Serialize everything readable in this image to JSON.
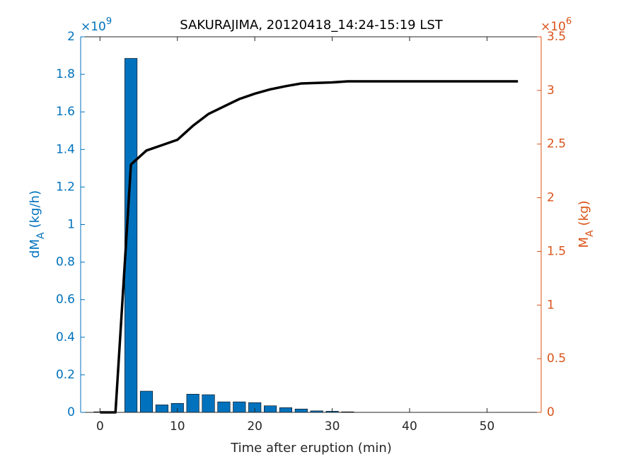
{
  "chart_data": {
    "type": "combo",
    "title": "SAKURAJIMA, 20120418_14:24-15:19 LST",
    "xlabel": "Time after eruption (min)",
    "ylabel": {
      "main": "dM",
      "sub": "A",
      "unit": "(kg/h)"
    },
    "y2label": {
      "main": "M",
      "sub": "A",
      "unit": "(kg)"
    },
    "y_exponent": {
      "base": "×10",
      "exp": "9"
    },
    "y2_exponent": {
      "base": "×10",
      "exp": "6"
    },
    "x": [
      0,
      2,
      4,
      6,
      8,
      10,
      12,
      14,
      16,
      18,
      20,
      22,
      24,
      26,
      28,
      30,
      32,
      34,
      36,
      38,
      40,
      42,
      44,
      46,
      48,
      50,
      52,
      54
    ],
    "xlim": [
      -2.5,
      57
    ],
    "xticks": [
      0,
      10,
      20,
      30,
      40,
      50
    ],
    "ylim": [
      0,
      2
    ],
    "yticks": [
      0,
      0.2,
      0.4,
      0.6,
      0.8,
      1,
      1.2,
      1.4,
      1.6,
      1.8,
      2
    ],
    "y2lim": [
      0,
      3.5
    ],
    "y2ticks": [
      0,
      0.5,
      1,
      1.5,
      2,
      2.5,
      3,
      3.5
    ],
    "y_color": "#0072bd",
    "y2_color": "#d95319",
    "series": [
      {
        "type": "bar",
        "color": "#0072bd",
        "values": [
          0.003,
          0,
          1.885,
          0.113,
          0.04,
          0.048,
          0.097,
          0.094,
          0.056,
          0.056,
          0.052,
          0.035,
          0.025,
          0.018,
          0.008,
          0.006,
          0.003,
          0,
          0,
          0,
          0,
          0,
          0,
          0,
          0,
          0,
          0,
          0
        ]
      },
      {
        "type": "line",
        "axis": "y2",
        "color": "#000000",
        "values": [
          0,
          0,
          2.31,
          2.44,
          2.49,
          2.54,
          2.67,
          2.78,
          2.85,
          2.92,
          2.97,
          3.01,
          3.04,
          3.065,
          3.07,
          3.075,
          3.085,
          3.085,
          3.085,
          3.085,
          3.085,
          3.085,
          3.085,
          3.085,
          3.085,
          3.085,
          3.085,
          3.085
        ]
      }
    ]
  }
}
